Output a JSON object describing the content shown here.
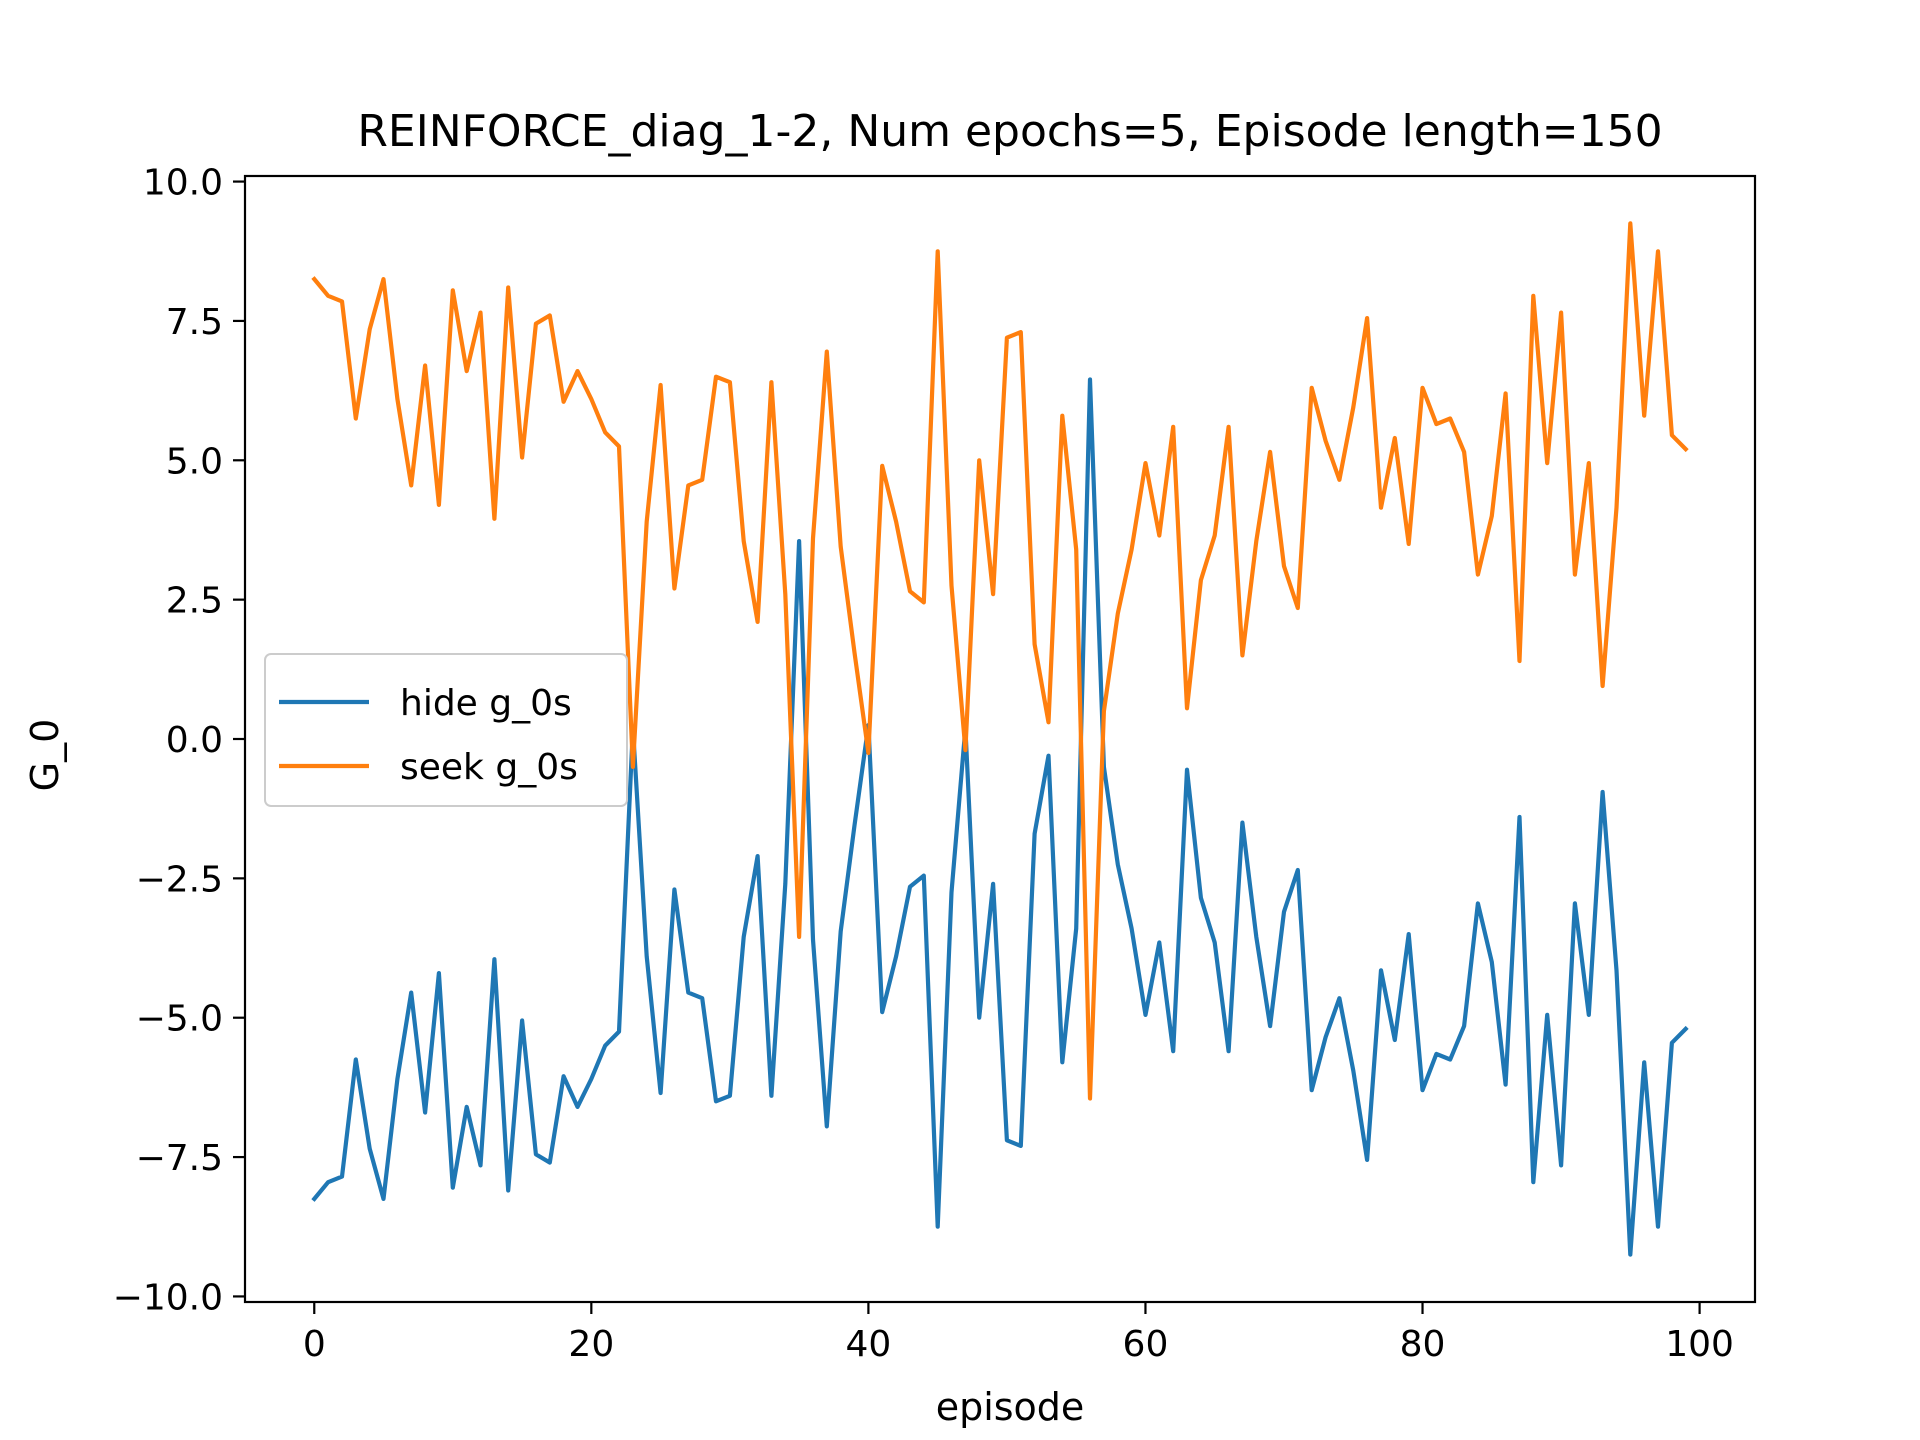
{
  "chart_data": {
    "type": "line",
    "title": "REINFORCE_diag_1-2, Num epochs=5, Episode length=150",
    "xlabel": "episode",
    "ylabel": "G_0",
    "xlim": [
      -5,
      104
    ],
    "ylim": [
      -10.1,
      10.1
    ],
    "xticks": [
      0,
      20,
      40,
      60,
      80,
      100
    ],
    "xtick_labels": [
      "0",
      "20",
      "40",
      "60",
      "80",
      "100"
    ],
    "yticks": [
      10.0,
      7.5,
      5.0,
      2.5,
      0.0,
      -2.5,
      -5.0,
      -7.5,
      -10.0
    ],
    "ytick_labels": [
      "10.0",
      "7.5",
      "5.0",
      "2.5",
      "0.0",
      "−2.5",
      "−5.0",
      "−7.5",
      "−10.0"
    ],
    "grid": false,
    "legend_position": "center-left",
    "x": [
      0,
      1,
      2,
      3,
      4,
      5,
      6,
      7,
      8,
      9,
      10,
      11,
      12,
      13,
      14,
      15,
      16,
      17,
      18,
      19,
      20,
      21,
      22,
      23,
      24,
      25,
      26,
      27,
      28,
      29,
      30,
      31,
      32,
      33,
      34,
      35,
      36,
      37,
      38,
      39,
      40,
      41,
      42,
      43,
      44,
      45,
      46,
      47,
      48,
      49,
      50,
      51,
      52,
      53,
      54,
      55,
      56,
      57,
      58,
      59,
      60,
      61,
      62,
      63,
      64,
      65,
      66,
      67,
      68,
      69,
      70,
      71,
      72,
      73,
      74,
      75,
      76,
      77,
      78,
      79,
      80,
      81,
      82,
      83,
      84,
      85,
      86,
      87,
      88,
      89,
      90,
      91,
      92,
      93,
      94,
      95,
      96,
      97,
      98,
      99
    ],
    "series": [
      {
        "name": "hide g_0s",
        "color": "#1f77b4",
        "values": [
          -8.25,
          -7.95,
          -7.85,
          -5.75,
          -7.35,
          -8.25,
          -6.1,
          -4.55,
          -6.7,
          -4.2,
          -8.05,
          -6.6,
          -7.65,
          -3.95,
          -8.1,
          -5.05,
          -7.45,
          -7.6,
          -6.05,
          -6.6,
          -6.1,
          -5.5,
          -5.25,
          0.2,
          -3.9,
          -6.35,
          -2.7,
          -4.55,
          -4.65,
          -6.5,
          -6.4,
          -3.55,
          -2.1,
          -6.4,
          -2.6,
          3.55,
          -3.6,
          -6.95,
          -3.45,
          -1.55,
          0.25,
          -4.9,
          -3.9,
          -2.65,
          -2.45,
          -8.75,
          -2.75,
          0.2,
          -5.0,
          -2.6,
          -7.2,
          -7.3,
          -1.7,
          -0.3,
          -5.8,
          -3.4,
          6.45,
          -0.5,
          -2.25,
          -3.4,
          -4.95,
          -3.65,
          -5.6,
          -0.55,
          -2.85,
          -3.65,
          -5.6,
          -1.5,
          -3.55,
          -5.15,
          -3.1,
          -2.35,
          -6.3,
          -5.35,
          -4.65,
          -5.95,
          -7.55,
          -4.15,
          -5.4,
          -3.5,
          -6.3,
          -5.65,
          -5.75,
          -5.15,
          -2.95,
          -4.0,
          -6.2,
          -1.4,
          -7.95,
          -4.95,
          -7.65,
          -2.95,
          -4.95,
          -0.95,
          -4.15,
          -9.25,
          -5.8,
          -8.75,
          -5.45,
          -5.2
        ]
      },
      {
        "name": "seek g_0s",
        "color": "#ff7f0e",
        "values": [
          8.25,
          7.95,
          7.85,
          5.75,
          7.35,
          8.25,
          6.1,
          4.55,
          6.7,
          4.2,
          8.05,
          6.6,
          7.65,
          3.95,
          8.1,
          5.05,
          7.45,
          7.6,
          6.05,
          6.6,
          6.1,
          5.5,
          5.25,
          -0.5,
          3.9,
          6.35,
          2.7,
          4.55,
          4.65,
          6.5,
          6.4,
          3.55,
          2.1,
          6.4,
          2.6,
          -3.55,
          3.6,
          6.95,
          3.45,
          1.55,
          -0.25,
          4.9,
          3.9,
          2.65,
          2.45,
          8.75,
          2.75,
          -0.2,
          5.0,
          2.6,
          7.2,
          7.3,
          1.7,
          0.3,
          5.8,
          3.4,
          -6.45,
          0.5,
          2.25,
          3.4,
          4.95,
          3.65,
          5.6,
          0.55,
          2.85,
          3.65,
          5.6,
          1.5,
          3.55,
          5.15,
          3.1,
          2.35,
          6.3,
          5.35,
          4.65,
          5.95,
          7.55,
          4.15,
          5.4,
          3.5,
          6.3,
          5.65,
          5.75,
          5.15,
          2.95,
          4.0,
          6.2,
          1.4,
          7.95,
          4.95,
          7.65,
          2.95,
          4.95,
          0.95,
          4.15,
          9.25,
          5.8,
          8.75,
          5.45,
          5.2
        ]
      }
    ]
  }
}
